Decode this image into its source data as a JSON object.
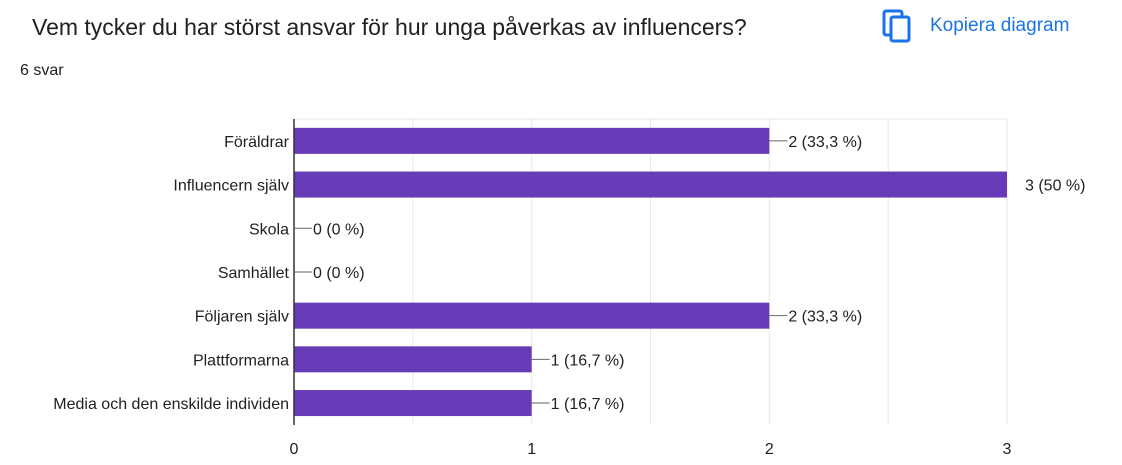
{
  "question": {
    "title": "Vem tycker du har störst ansvar för hur unga påverkas av influencers?",
    "response_count": "6 svar"
  },
  "copy_button": {
    "label": "Kopiera diagram",
    "icon": "copy-icon"
  },
  "colors": {
    "bar": "#673ab7",
    "grid": "#e8e8e8",
    "axis": "#333333",
    "accent": "#1a73e8"
  },
  "chart_data": {
    "type": "bar",
    "orientation": "horizontal",
    "categories": [
      "Föräldrar",
      "Influencern själv",
      "Skola",
      "Samhället",
      "Följaren själv",
      "Plattformarna",
      "Media och den enskilde individen"
    ],
    "values": [
      2,
      3,
      0,
      0,
      2,
      1,
      1
    ],
    "value_labels": [
      "2 (33,3 %)",
      "3 (50 %)",
      "0 (0 %)",
      "0 (0 %)",
      "2 (33,3 %)",
      "1 (16,7 %)",
      "1 (16,7 %)"
    ],
    "xlim": [
      0,
      3
    ],
    "x_ticks": [
      0,
      1,
      2,
      3
    ],
    "x_tick_labels": [
      "0",
      "1",
      "2",
      "3"
    ],
    "grid": true
  }
}
